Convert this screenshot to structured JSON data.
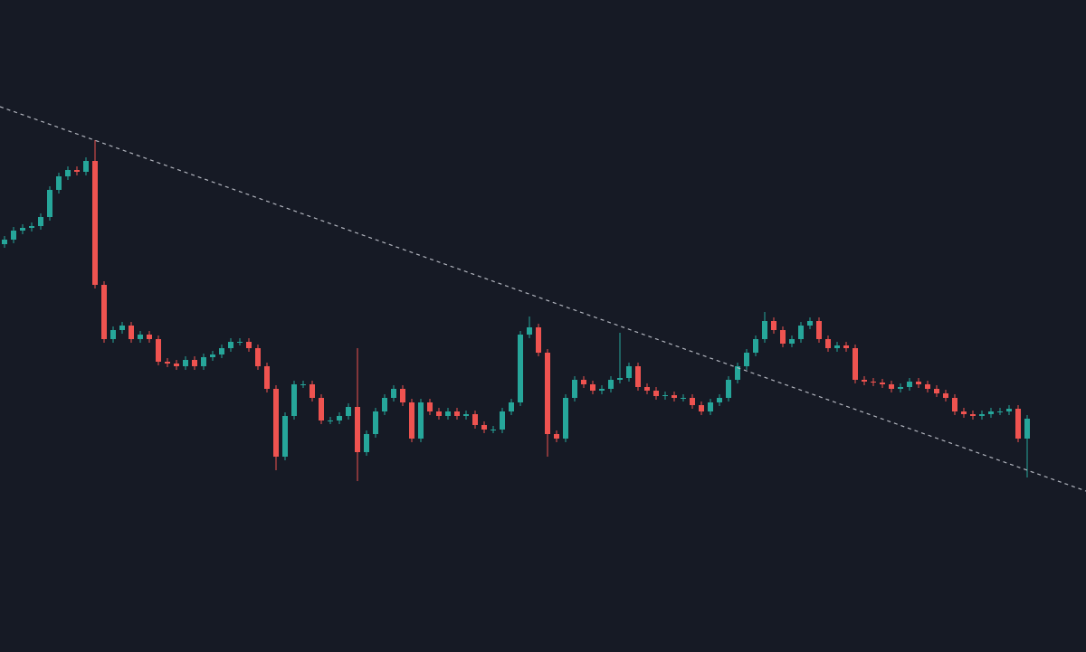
{
  "chart_data": {
    "type": "candlestick",
    "up_color": "#26a69a",
    "down_color": "#ef5350",
    "xlim": [
      -0.5,
      119.5
    ],
    "ylim": [
      0,
      721
    ],
    "categories": [
      null,
      null,
      null,
      null,
      null,
      null,
      null,
      null,
      null,
      null,
      null,
      null,
      null,
      null,
      null,
      null,
      null,
      null,
      null,
      null,
      null,
      null,
      null,
      null,
      null,
      null,
      null,
      null,
      null,
      null,
      null,
      null,
      null,
      null,
      null,
      null,
      null,
      null,
      null,
      null,
      null,
      null,
      null,
      null,
      null,
      null,
      null,
      null,
      null,
      null,
      null,
      null,
      null,
      null,
      null,
      null,
      null,
      null,
      null,
      null,
      null,
      null,
      null,
      null,
      null,
      null,
      null,
      null,
      null,
      null,
      null,
      null,
      null,
      null,
      null,
      null,
      null,
      null,
      null,
      null,
      null,
      null,
      null,
      null,
      null,
      null,
      null,
      null,
      null,
      null,
      null,
      null,
      null,
      null,
      null,
      null,
      null,
      null,
      null,
      null,
      null,
      null,
      null,
      null,
      null,
      null,
      null,
      null,
      null,
      null,
      null,
      null,
      null,
      null
    ],
    "open": [
      451,
      456,
      466,
      469,
      471,
      481,
      511,
      526,
      533,
      531,
      543,
      406,
      346,
      356,
      361,
      346,
      351,
      346,
      321,
      319,
      316,
      323,
      316,
      326,
      329,
      336,
      343,
      343,
      336,
      316,
      291,
      216,
      261,
      296,
      296,
      281,
      256,
      256,
      261,
      271,
      221,
      241,
      266,
      281,
      291,
      276,
      236,
      276,
      266,
      261,
      266,
      261,
      263,
      251,
      246,
      246,
      266,
      276,
      351,
      359,
      331,
      241,
      236,
      281,
      301,
      296,
      289,
      291,
      301,
      303,
      316,
      293,
      289,
      283,
      284,
      281,
      281,
      273,
      266,
      276,
      281,
      301,
      316,
      331,
      346,
      366,
      356,
      341,
      346,
      361,
      366,
      346,
      336,
      339,
      336,
      301,
      299,
      298,
      296,
      291,
      293,
      299,
      296,
      291,
      286,
      281,
      266,
      263,
      261,
      263,
      266,
      266,
      269,
      236
    ],
    "high": [
      460,
      470,
      473,
      475,
      485,
      515,
      530,
      537,
      537,
      547,
      566,
      410,
      360,
      365,
      365,
      355,
      355,
      350,
      325,
      323,
      327,
      327,
      330,
      333,
      340,
      347,
      347,
      347,
      340,
      320,
      295,
      265,
      300,
      300,
      300,
      285,
      260,
      265,
      275,
      336,
      245,
      270,
      285,
      295,
      295,
      280,
      280,
      280,
      270,
      270,
      270,
      267,
      267,
      255,
      250,
      270,
      280,
      355,
      371,
      363,
      335,
      245,
      285,
      305,
      305,
      300,
      295,
      305,
      353,
      320,
      320,
      297,
      293,
      288,
      288,
      285,
      285,
      277,
      280,
      285,
      305,
      320,
      335,
      350,
      376,
      370,
      360,
      350,
      365,
      370,
      370,
      350,
      343,
      343,
      340,
      305,
      303,
      302,
      300,
      297,
      303,
      303,
      300,
      295,
      290,
      285,
      270,
      267,
      267,
      270,
      270,
      273,
      273,
      262
    ],
    "low": [
      447,
      452,
      462,
      465,
      467,
      477,
      507,
      522,
      527,
      527,
      402,
      342,
      342,
      352,
      342,
      342,
      342,
      317,
      315,
      312,
      312,
      312,
      312,
      322,
      325,
      332,
      339,
      332,
      312,
      287,
      201,
      212,
      257,
      292,
      277,
      252,
      252,
      252,
      257,
      189,
      217,
      237,
      262,
      277,
      272,
      232,
      232,
      262,
      257,
      257,
      257,
      257,
      247,
      242,
      242,
      242,
      262,
      272,
      347,
      327,
      216,
      232,
      232,
      277,
      292,
      285,
      285,
      287,
      297,
      299,
      289,
      285,
      279,
      279,
      277,
      277,
      269,
      262,
      262,
      272,
      277,
      297,
      312,
      327,
      342,
      352,
      337,
      337,
      342,
      357,
      342,
      332,
      332,
      332,
      297,
      295,
      294,
      292,
      287,
      287,
      289,
      292,
      287,
      282,
      277,
      262,
      259,
      257,
      257,
      259,
      262,
      262,
      232,
      193
    ],
    "close": [
      456,
      466,
      469,
      471,
      481,
      511,
      526,
      533,
      531,
      543,
      406,
      346,
      356,
      361,
      346,
      351,
      346,
      321,
      319,
      316,
      323,
      316,
      326,
      329,
      336,
      343,
      343,
      336,
      316,
      291,
      216,
      261,
      296,
      296,
      281,
      256,
      256,
      261,
      271,
      221,
      241,
      266,
      281,
      291,
      276,
      236,
      276,
      266,
      261,
      266,
      261,
      263,
      251,
      246,
      246,
      266,
      276,
      351,
      359,
      331,
      241,
      236,
      281,
      301,
      296,
      289,
      291,
      301,
      303,
      316,
      293,
      289,
      283,
      284,
      281,
      281,
      273,
      266,
      276,
      281,
      301,
      316,
      331,
      346,
      366,
      356,
      341,
      346,
      361,
      366,
      346,
      336,
      339,
      336,
      301,
      299,
      298,
      296,
      291,
      293,
      299,
      296,
      291,
      286,
      281,
      266,
      263,
      261,
      263,
      266,
      266,
      269,
      236,
      258
    ],
    "trendline": {
      "x": [
        -0.5,
        119.5
      ],
      "y": [
        603,
        178
      ],
      "color": "#b2b5be"
    }
  }
}
